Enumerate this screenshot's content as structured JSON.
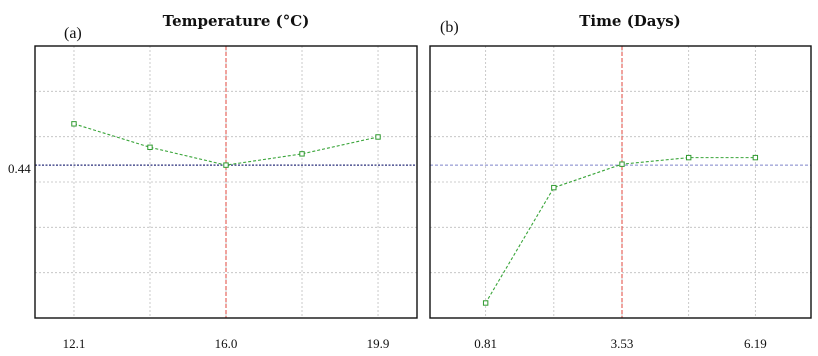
{
  "chart_data": [
    {
      "type": "line",
      "panel_label": "(a)",
      "title": "Temperature (°C)",
      "x": [
        12.1,
        14.05,
        16.0,
        17.95,
        19.9
      ],
      "values": [
        0.487,
        0.462,
        0.443,
        0.455,
        0.473
      ],
      "xticks": [
        "12.1",
        "16.0",
        "19.9"
      ],
      "yticks": [
        "0.44"
      ],
      "xlim": [
        11.1,
        20.9
      ],
      "ylim": [
        0.28,
        0.57
      ],
      "ref_x": 16.0,
      "ref_y": 0.443,
      "grid": true,
      "line_color": "#3aa53a"
    },
    {
      "type": "line",
      "panel_label": "(b)",
      "title": "Time (Days)",
      "x": [
        0.81,
        2.17,
        3.53,
        4.86,
        6.19
      ],
      "values": [
        0.296,
        0.419,
        0.444,
        0.451,
        0.451
      ],
      "xticks": [
        "0.81",
        "3.53",
        "6.19"
      ],
      "yticks": [],
      "xlim": [
        -0.3,
        7.3
      ],
      "ylim": [
        0.28,
        0.57
      ],
      "ref_x": 3.53,
      "ref_y": 0.443,
      "grid": true,
      "line_color": "#3aa53a"
    }
  ]
}
